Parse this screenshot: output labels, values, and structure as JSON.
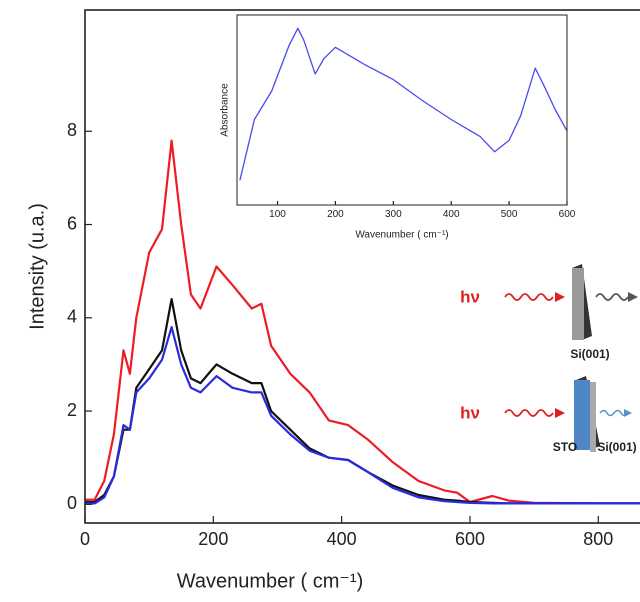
{
  "chart_data": [
    {
      "type": "line",
      "x_label": "Wavenumber ( cm⁻¹)",
      "y_label": "Intensity (u.a.)",
      "xlim": [
        0,
        865
      ],
      "ylim": [
        -0.4,
        10.6
      ],
      "xticks": [
        0,
        200,
        400,
        600,
        800
      ],
      "yticks": [
        0,
        2,
        4,
        6,
        8
      ],
      "x": [
        0,
        15,
        30,
        45,
        60,
        70,
        80,
        100,
        120,
        135,
        150,
        165,
        180,
        205,
        230,
        260,
        275,
        290,
        320,
        350,
        380,
        410,
        440,
        480,
        520,
        560,
        580,
        600,
        635,
        660,
        700,
        800,
        865
      ],
      "series": [
        {
          "color": "#ee1c25",
          "values": [
            0.1,
            0.1,
            0.5,
            1.5,
            3.3,
            2.8,
            4.0,
            5.4,
            5.9,
            7.8,
            6.0,
            4.5,
            4.2,
            5.1,
            4.7,
            4.2,
            4.3,
            3.4,
            2.8,
            2.4,
            1.8,
            1.7,
            1.4,
            0.9,
            0.5,
            0.3,
            0.25,
            0.05,
            0.18,
            0.08,
            0.03,
            0.02,
            0.02
          ]
        },
        {
          "color": "#111111",
          "values": [
            0.05,
            0.05,
            0.2,
            0.6,
            1.6,
            1.6,
            2.5,
            2.9,
            3.3,
            4.4,
            3.3,
            2.7,
            2.6,
            3.0,
            2.8,
            2.6,
            2.6,
            2.0,
            1.6,
            1.2,
            1.0,
            0.95,
            0.7,
            0.4,
            0.2,
            0.1,
            0.08,
            0.05,
            0.03,
            0.02,
            0.02,
            0.02,
            0.02
          ]
        },
        {
          "color": "#2a2ae0",
          "values": [
            0.02,
            0.02,
            0.15,
            0.6,
            1.7,
            1.6,
            2.4,
            2.7,
            3.1,
            3.8,
            3.0,
            2.5,
            2.4,
            2.75,
            2.5,
            2.4,
            2.4,
            1.9,
            1.5,
            1.15,
            1.0,
            0.95,
            0.7,
            0.35,
            0.15,
            0.07,
            0.05,
            0.03,
            0.02,
            0.02,
            0.02,
            0.02,
            0.02
          ]
        }
      ],
      "annotations": [
        "hν",
        "Si(001)",
        "hν",
        "STO",
        "Si(001)"
      ]
    },
    {
      "type": "line",
      "x_label": "Wavenumber ( cm⁻¹)",
      "y_label": "Absorbance",
      "xlim": [
        30,
        600
      ],
      "ylim": [
        0,
        1
      ],
      "xticks": [
        100,
        200,
        300,
        400,
        500,
        600
      ],
      "x": [
        35,
        60,
        90,
        120,
        135,
        145,
        165,
        180,
        200,
        250,
        300,
        350,
        400,
        450,
        475,
        500,
        520,
        545,
        560,
        580,
        600
      ],
      "series": [
        {
          "color": "#4a4af0",
          "values": [
            0.13,
            0.45,
            0.6,
            0.84,
            0.93,
            0.87,
            0.69,
            0.77,
            0.83,
            0.74,
            0.66,
            0.55,
            0.45,
            0.36,
            0.28,
            0.34,
            0.47,
            0.72,
            0.63,
            0.5,
            0.39
          ]
        }
      ]
    }
  ]
}
